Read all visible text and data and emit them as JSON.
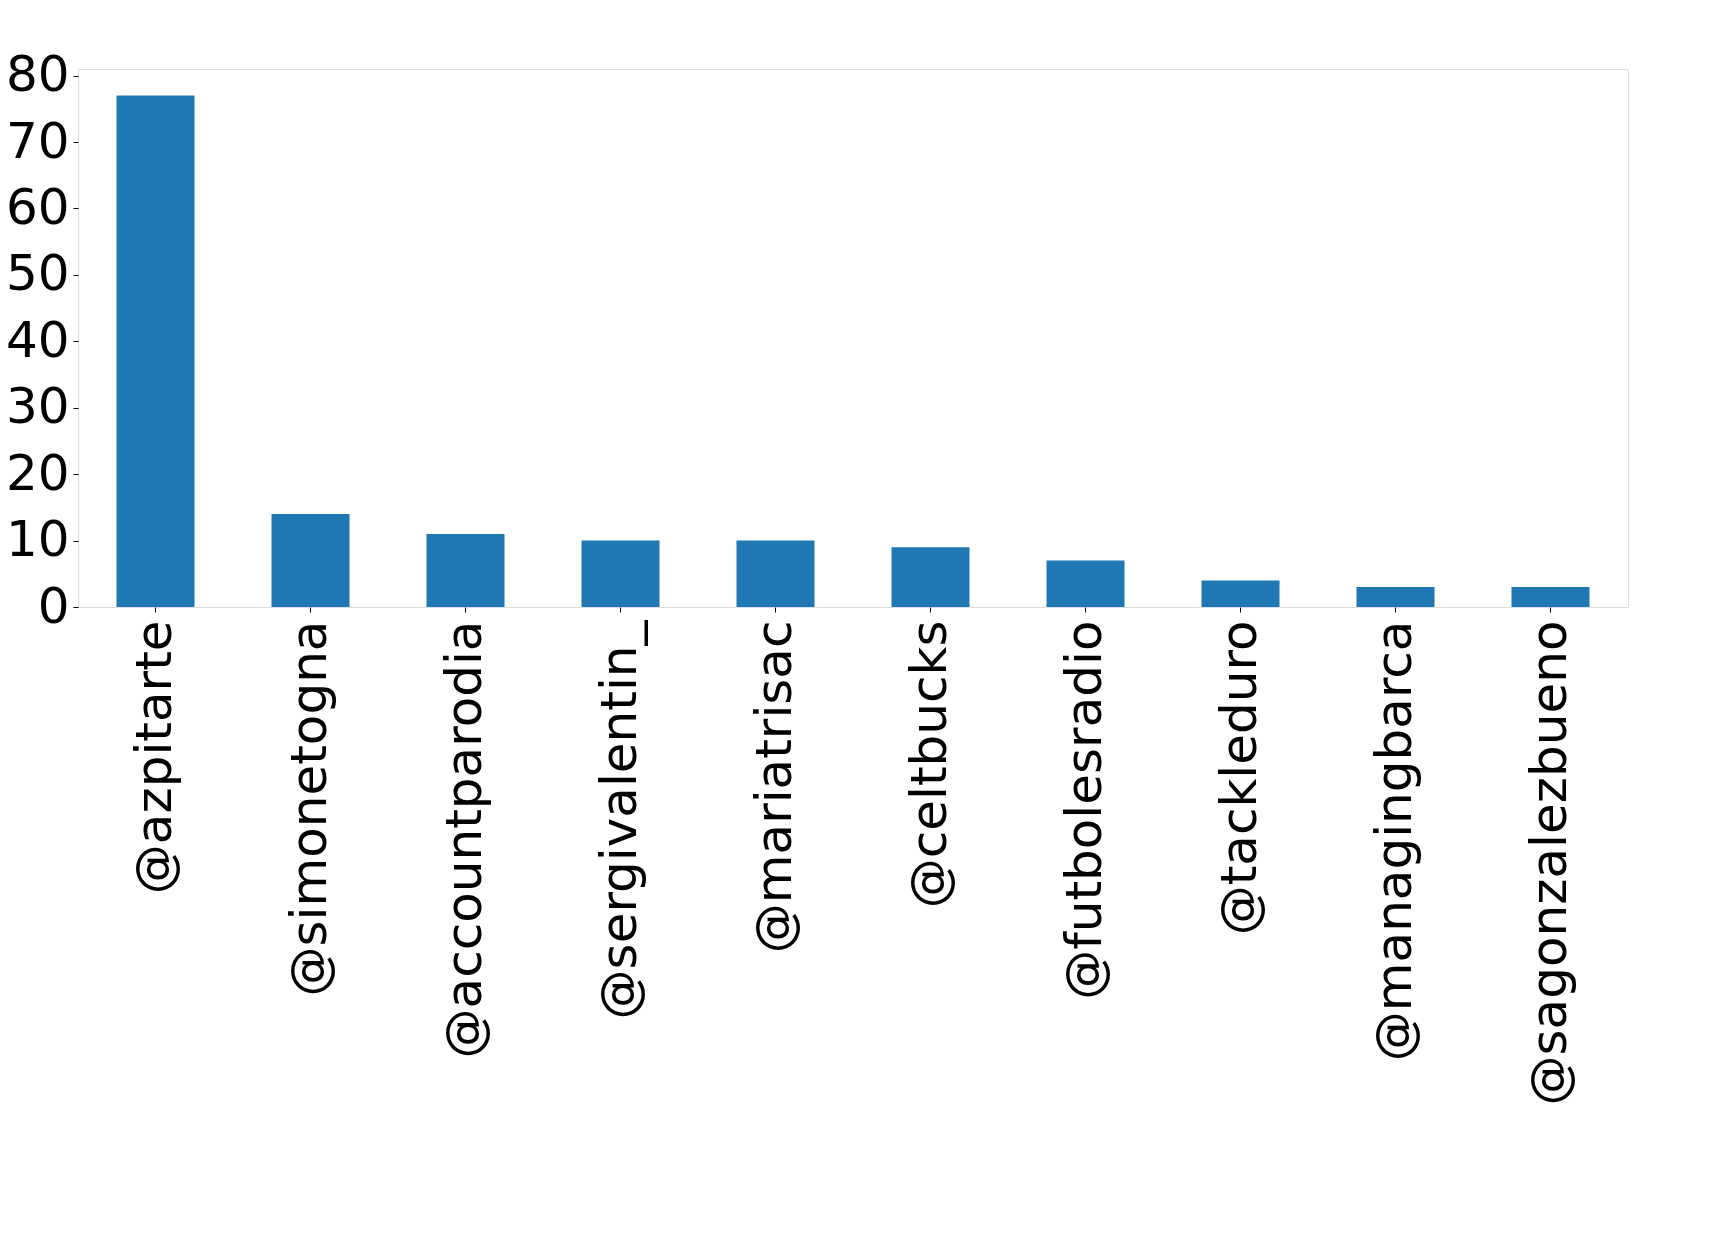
{
  "chart_data": {
    "type": "bar",
    "categories": [
      "@azpitarte",
      "@simonetogna",
      "@accountparodia",
      "@sergivalentin_",
      "@mariatrisac",
      "@celtbucks",
      "@futbolesradio",
      "@tackleduro",
      "@managingbarca",
      "@sagonzalezbueno"
    ],
    "values": [
      77,
      14,
      11,
      10,
      10,
      9,
      7,
      4,
      3,
      3
    ],
    "color": "#1f77b4",
    "ylim": [
      0,
      81
    ],
    "yticks": [
      0,
      10,
      20,
      30,
      40,
      50,
      60,
      70,
      80
    ],
    "grid": false
  }
}
